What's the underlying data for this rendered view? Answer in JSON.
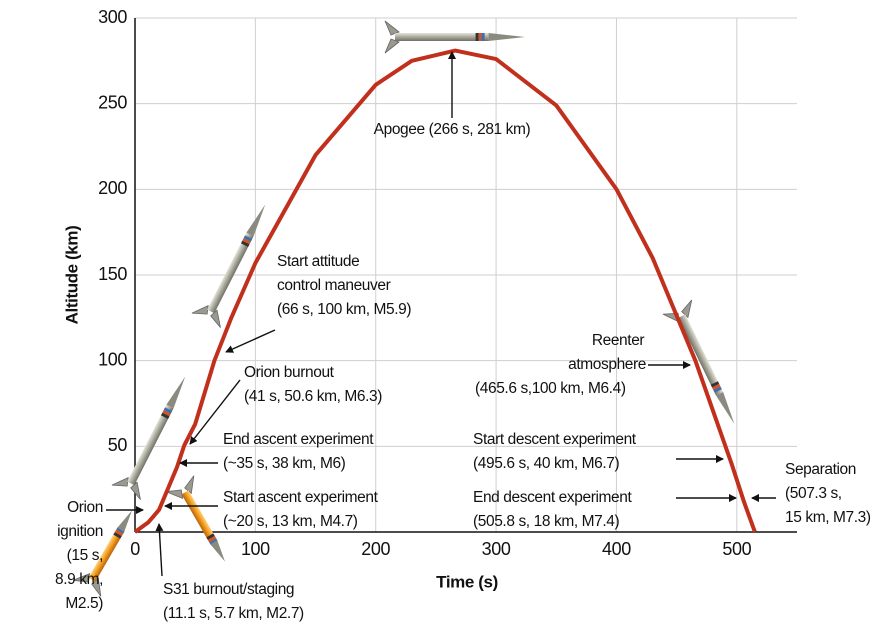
{
  "chart_data": {
    "type": "line",
    "x_label": "Time (s)",
    "y_label": "Altitude (km)",
    "xlim": [
      0,
      550
    ],
    "ylim": [
      0,
      300
    ],
    "xticks": [
      0,
      100,
      200,
      300,
      400,
      500
    ],
    "yticks": [
      50,
      100,
      150,
      200,
      250,
      300
    ],
    "grid": true,
    "series": [
      {
        "color": "#c1301c",
        "x": [
          0,
          11.1,
          15,
          20,
          35,
          41,
          50,
          66,
          80,
          100,
          150,
          200,
          230,
          266,
          300,
          350,
          400,
          430,
          465.6,
          495.6,
          505.8,
          507.3,
          515
        ],
        "values": [
          0,
          5.7,
          8.9,
          13,
          38,
          50.6,
          63,
          100,
          125,
          157,
          220,
          261,
          275,
          281,
          276,
          249,
          200,
          160,
          100,
          40,
          18,
          15,
          0
        ]
      }
    ],
    "annotations": [
      [
        "Apogee (266 s, 281 km)"
      ],
      [
        "Start attitude",
        "control maneuver",
        "(66 s, 100 km, M5.9)"
      ],
      [
        "Orion burnout",
        "(41 s, 50.6 km, M6.3)"
      ],
      [
        "End ascent experiment",
        "(~35 s, 38 km, M6)"
      ],
      [
        "Start ascent experiment",
        "(~20 s, 13 km, M4.7)"
      ],
      [
        "Orion",
        "ignition",
        "(15 s,",
        "8.9 km,",
        "M2.5)"
      ],
      [
        "S31 burnout/staging",
        "(11.1 s, 5.7 km, M2.7)"
      ],
      [
        "Reenter",
        "atmosphere",
        "(465.6 s,100 km, M6.4)"
      ],
      [
        "Start descent experiment",
        "(495.6 s, 40 km, M6.7)"
      ],
      [
        "End descent experiment",
        "(505.8 s, 18 km, M7.4)"
      ],
      [
        "Separation",
        "(507.3 s,",
        "15 km, M7.3)"
      ]
    ]
  }
}
